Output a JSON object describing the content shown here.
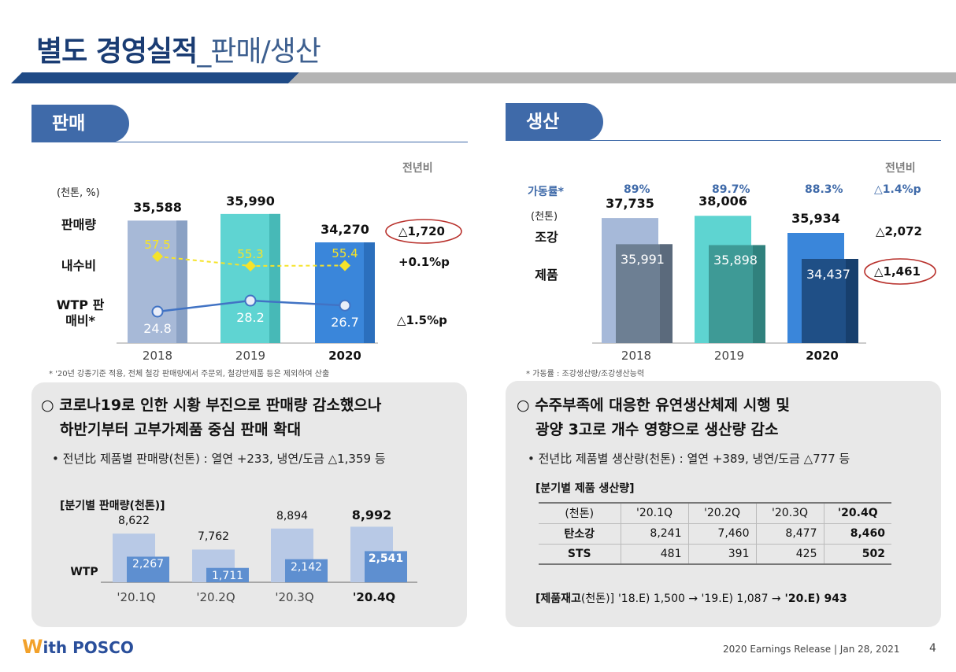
{
  "header": {
    "title_main": "별도 경영실적",
    "title_sub": "_판매/생산"
  },
  "sales": {
    "tab": "판매",
    "yoy_head": "전년비",
    "unit": "(천톤, %)",
    "row_labels": {
      "volume": "판매량",
      "domestic": "내수비",
      "wtp": "WTP 판매비*"
    },
    "chart_data": {
      "type": "bar",
      "title": "판매",
      "categories": [
        "2018",
        "2019",
        "2020"
      ],
      "series": [
        {
          "name": "판매량",
          "values": [
            35588,
            35990,
            34270
          ]
        },
        {
          "name": "내수비",
          "values": [
            57.5,
            55.3,
            55.4
          ]
        },
        {
          "name": "WTP 판매비",
          "values": [
            24.8,
            28.2,
            26.7
          ]
        }
      ],
      "volume_labels": [
        "35,588",
        "35,990",
        "34,270"
      ],
      "domestic_labels": [
        "57.5",
        "55.3",
        "55.4"
      ],
      "wtp_labels": [
        "24.8",
        "28.2",
        "26.7"
      ],
      "years": [
        "2018",
        "2019",
        "2020"
      ],
      "colors": {
        "y2018": "#a7b9d7",
        "y2019": "#5fd4d2",
        "y2020": "#3a86da",
        "yellow": "#f5e32a",
        "wtp": "#4173c4"
      }
    },
    "yoy": {
      "volume": "△1,720",
      "domestic": "+0.1%p",
      "wtp": "△1.5%p"
    },
    "footnote": "* '20년 강종기준 적용, 전체 철강 판매량에서 주문외, 철강반제품 등은 제외하여 산출",
    "headline": [
      "코로나19로 인한 시황 부진으로 판매량 감소했으나",
      "하반기부터 고부가제품 중심 판매 확대"
    ],
    "bullet": "전년比 제품별 판매량(천톤) : 열연 +233, 냉연/도금 △1,359 등",
    "quarterly": {
      "title": "[분기별 판매량(천톤)]",
      "wtp_label": "WTP",
      "chart_data": {
        "type": "bar",
        "categories": [
          "'20.1Q",
          "'20.2Q",
          "'20.3Q",
          "'20.4Q"
        ],
        "series": [
          {
            "name": "판매량",
            "values": [
              8622,
              7762,
              8894,
              8992
            ]
          },
          {
            "name": "WTP",
            "values": [
              2267,
              1711,
              2142,
              2541
            ]
          }
        ],
        "total_labels": [
          "8,622",
          "7,762",
          "8,894",
          "8,992"
        ],
        "wtp_labels": [
          "2,267",
          "1,711",
          "2,142",
          "2,541"
        ],
        "quarters": [
          "'20.1Q",
          "'20.2Q",
          "'20.3Q",
          "'20.4Q"
        ]
      }
    }
  },
  "production": {
    "tab": "생산",
    "yoy_head": "전년비",
    "util_label": "가동률*",
    "util": [
      "89%",
      "89.7%",
      "88.3%"
    ],
    "util_yoy": "△1.4%p",
    "unit": "(천톤)",
    "row_labels": {
      "crude": "조강",
      "product": "제품"
    },
    "chart_data": {
      "type": "bar",
      "title": "생산",
      "categories": [
        "2018",
        "2019",
        "2020"
      ],
      "series": [
        {
          "name": "조강",
          "values": [
            37735,
            38006,
            35934
          ]
        },
        {
          "name": "제품",
          "values": [
            35991,
            35898,
            34437
          ]
        },
        {
          "name": "가동률",
          "values": [
            89,
            89.7,
            88.3
          ]
        }
      ],
      "crude_labels": [
        "37,735",
        "38,006",
        "35,934"
      ],
      "product_labels": [
        "35,991",
        "35,898",
        "34,437"
      ],
      "years": [
        "2018",
        "2019",
        "2020"
      ]
    },
    "yoy": {
      "crude": "△2,072",
      "product": "△1,461"
    },
    "footnote": "* 가동률 : 조강생산량/조강생산능력",
    "headline": [
      "수주부족에 대응한 유연생산체제 시행 및",
      "광양 3고로 개수 영향으로 생산량 감소"
    ],
    "bullet": "전년比 제품별 생산량(천톤) : 열연 +389, 냉연/도금 △777 등",
    "quarterly": {
      "title": "[분기별 제품 생산량]",
      "table": {
        "header": [
          "(천톤)",
          "'20.1Q",
          "'20.2Q",
          "'20.3Q",
          "'20.4Q"
        ],
        "rows": [
          [
            "탄소강",
            "8,241",
            "7,460",
            "8,477",
            "8,460"
          ],
          [
            "STS",
            "481",
            "391",
            "425",
            "502"
          ]
        ]
      }
    },
    "inventory": {
      "label": "[제품재고",
      "unit": "(천톤)]",
      "text": "'18.E) 1,500 → '19.E) 1,087 →",
      "last": "'20.E) 943"
    }
  },
  "footer": {
    "logo_w": "W",
    "logo_rest": "ith POSCO",
    "release": "2020 Earnings Release  |  Jan 28, 2021",
    "page": "4"
  }
}
